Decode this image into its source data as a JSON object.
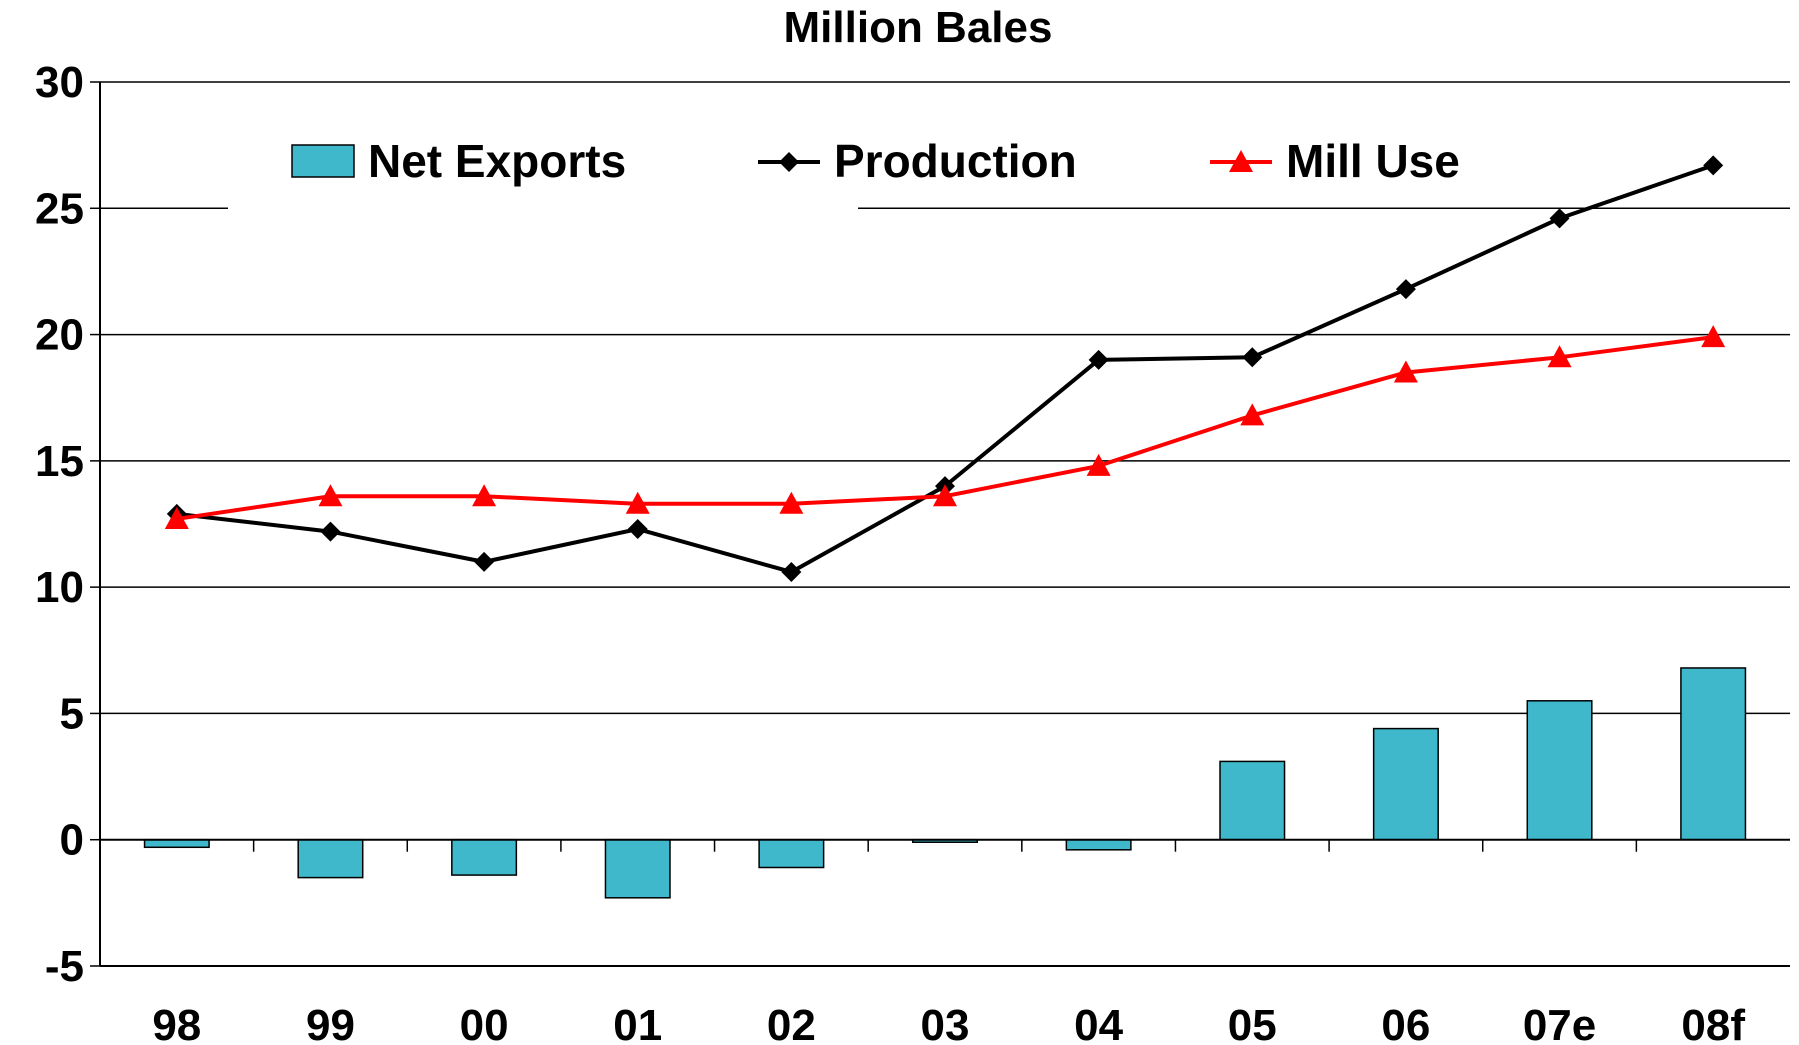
{
  "chart_data": {
    "type": "bar",
    "title": "Million Bales",
    "xlabel": "",
    "ylabel": "",
    "ylim": [
      -5,
      30
    ],
    "yticks": [
      -5,
      0,
      5,
      10,
      15,
      20,
      25,
      30
    ],
    "grid": true,
    "legend_position": "top",
    "categories": [
      "98",
      "99",
      "00",
      "01",
      "02",
      "03",
      "04",
      "05",
      "06",
      "07e",
      "08f"
    ],
    "series": [
      {
        "name": "Net Exports",
        "type": "bar",
        "color": "#40B8CC",
        "values": [
          -0.3,
          -1.5,
          -1.4,
          -2.3,
          -1.1,
          -0.1,
          -0.4,
          3.1,
          4.4,
          5.5,
          6.8
        ]
      },
      {
        "name": "Production",
        "type": "line",
        "marker": "diamond",
        "color": "#000000",
        "values": [
          12.9,
          12.2,
          11.0,
          12.3,
          10.6,
          14.0,
          19.0,
          19.1,
          21.8,
          24.6,
          26.7
        ]
      },
      {
        "name": "Mill Use",
        "type": "line",
        "marker": "triangle",
        "color": "#FF0000",
        "values": [
          12.7,
          13.6,
          13.6,
          13.3,
          13.3,
          13.6,
          14.8,
          16.8,
          18.5,
          19.1,
          19.9
        ]
      }
    ]
  }
}
